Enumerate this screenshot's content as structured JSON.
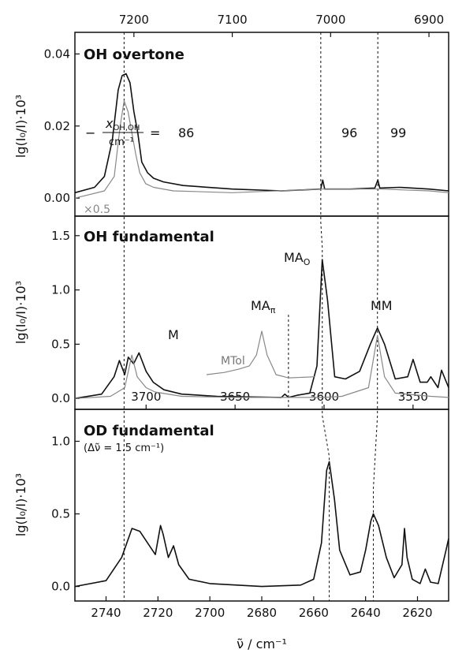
{
  "chart_data": [
    {
      "type": "line",
      "title": "OH overtone",
      "ylabel": "lg(I₀/I)·10³",
      "xlabel_top": "",
      "x_top_ticks": [
        "7200",
        "7100",
        "7000",
        "6900"
      ],
      "x_top_range": [
        7260,
        6880
      ],
      "ylim": [
        -0.005,
        0.046
      ],
      "y_ticks": [
        "0.00",
        "0.02",
        "0.04"
      ],
      "annotations": {
        "fraction_prefix": "−",
        "fraction_num": "x",
        "fraction_num_sub": "OH,OH",
        "fraction_den": "cm⁻¹",
        "equals": "=",
        "values": [
          "86",
          "96",
          "99"
        ],
        "scale_note": "×0.5"
      },
      "series": [
        {
          "color": "#111111",
          "x": [
            7260,
            7240,
            7230,
            7222,
            7216,
            7212,
            7208,
            7204,
            7200,
            7196,
            7192,
            7186,
            7180,
            7170,
            7150,
            7100,
            7050,
            7010,
            7008,
            7006,
            7000,
            6980,
            6955,
            6952,
            6950,
            6930,
            6900,
            6880
          ],
          "y": [
            0.0015,
            0.003,
            0.006,
            0.016,
            0.03,
            0.034,
            0.0345,
            0.032,
            0.024,
            0.018,
            0.01,
            0.007,
            0.0055,
            0.0045,
            0.0035,
            0.0025,
            0.002,
            0.0025,
            0.005,
            0.0025,
            0.0025,
            0.0025,
            0.0028,
            0.005,
            0.0028,
            0.003,
            0.0025,
            0.002
          ]
        },
        {
          "color": "#888888",
          "x": [
            7260,
            7230,
            7220,
            7214,
            7210,
            7206,
            7202,
            7198,
            7194,
            7188,
            7180,
            7160,
            7100,
            7008,
            6950,
            6900,
            6880
          ],
          "y": [
            0.0,
            0.002,
            0.006,
            0.02,
            0.027,
            0.024,
            0.018,
            0.012,
            0.007,
            0.004,
            0.003,
            0.002,
            0.0015,
            0.0025,
            0.0025,
            0.002,
            0.0015
          ]
        }
      ]
    },
    {
      "type": "line",
      "title": "OH fundamental",
      "ylabel": "lg(I₀/I)·10³",
      "x_ticks": [
        "3700",
        "3650",
        "3600",
        "3550"
      ],
      "xlim": [
        3740,
        3530
      ],
      "ylim": [
        -0.1,
        1.68
      ],
      "y_ticks": [
        "0.0",
        "0.5",
        "1.0",
        "1.5"
      ],
      "labels": [
        "M",
        "MAπ",
        "MAO",
        "MM",
        "MTol"
      ],
      "series": [
        {
          "color": "#111111",
          "x": [
            3740,
            3725,
            3718,
            3715,
            3712,
            3710,
            3707,
            3704,
            3700,
            3696,
            3690,
            3680,
            3660,
            3624,
            3622,
            3620,
            3615,
            3608,
            3604,
            3601,
            3598,
            3594,
            3588,
            3580,
            3574,
            3570,
            3566,
            3560,
            3553,
            3550,
            3546,
            3542,
            3540,
            3536,
            3534,
            3530
          ],
          "y": [
            0.0,
            0.04,
            0.2,
            0.35,
            0.22,
            0.38,
            0.32,
            0.42,
            0.25,
            0.15,
            0.08,
            0.04,
            0.02,
            0.01,
            0.04,
            0.01,
            0.03,
            0.05,
            0.3,
            1.28,
            0.9,
            0.2,
            0.18,
            0.25,
            0.5,
            0.65,
            0.5,
            0.18,
            0.2,
            0.36,
            0.15,
            0.15,
            0.2,
            0.1,
            0.26,
            0.1
          ]
        },
        {
          "color": "#888888",
          "x": [
            3740,
            3720,
            3712,
            3708,
            3705,
            3700,
            3695,
            3680,
            3650,
            3620,
            3600,
            3590,
            3575,
            3570,
            3566,
            3560,
            3540,
            3530
          ],
          "y": [
            0.0,
            0.02,
            0.1,
            0.4,
            0.2,
            0.1,
            0.06,
            0.02,
            0.01,
            0.01,
            0.01,
            0.02,
            0.1,
            0.58,
            0.2,
            0.05,
            0.02,
            0.01
          ]
        },
        {
          "color": "#888888",
          "x": [
            3666,
            3656,
            3648,
            3642,
            3638,
            3635,
            3632,
            3627,
            3620,
            3605
          ],
          "y": [
            0.22,
            0.24,
            0.27,
            0.3,
            0.4,
            0.62,
            0.4,
            0.22,
            0.19,
            0.2
          ]
        }
      ]
    },
    {
      "type": "line",
      "title": "OD fundamental",
      "subtitle": "(Δν̃ = 1.5 cm⁻¹)",
      "ylabel": "lg(I₀/I)·10³",
      "xlabel": "ν̃ / cm⁻¹",
      "x_ticks": [
        "2740",
        "2720",
        "2700",
        "2680",
        "2660",
        "2640",
        "2620"
      ],
      "xlim": [
        2752,
        2608
      ],
      "ylim": [
        -0.1,
        1.22
      ],
      "y_ticks": [
        "0.0",
        "0.5",
        "1.0"
      ],
      "series": [
        {
          "color": "#111111",
          "x": [
            2752,
            2740,
            2734,
            2730,
            2727,
            2724,
            2721,
            2719,
            2718,
            2716,
            2714,
            2712,
            2708,
            2700,
            2680,
            2665,
            2660,
            2657,
            2655,
            2654,
            2652,
            2650,
            2646,
            2642,
            2640,
            2638,
            2637,
            2635,
            2632,
            2629,
            2626,
            2625,
            2624,
            2622,
            2619,
            2617,
            2615,
            2612,
            2609,
            2608
          ],
          "y": [
            0.0,
            0.04,
            0.2,
            0.4,
            0.38,
            0.3,
            0.22,
            0.42,
            0.36,
            0.2,
            0.28,
            0.15,
            0.05,
            0.02,
            0.0,
            0.01,
            0.05,
            0.3,
            0.8,
            0.86,
            0.6,
            0.25,
            0.08,
            0.1,
            0.25,
            0.45,
            0.5,
            0.42,
            0.2,
            0.06,
            0.15,
            0.4,
            0.2,
            0.05,
            0.02,
            0.12,
            0.03,
            0.02,
            0.25,
            0.33
          ]
        }
      ]
    }
  ]
}
